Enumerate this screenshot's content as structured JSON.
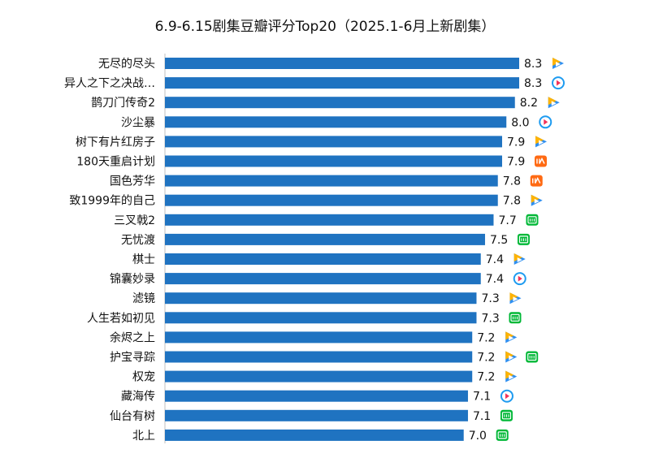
{
  "colors": {
    "bar": "#1f73c1",
    "axis": "#bfbfbf"
  },
  "chart_data": {
    "type": "bar",
    "orientation": "horizontal",
    "title": "6.9-6.15剧集豆瓣评分Top20（2025.1-6月上新剧集）",
    "xlabel": "",
    "ylabel": "",
    "xlim": [
      0,
      8.3
    ],
    "grid": false,
    "categories": [
      "无尽的尽头",
      "异人之下之决战…",
      "鹊刀门传奇2",
      "沙尘暴",
      "树下有片红房子",
      "180天重启计划",
      "国色芳华",
      "致1999年的自己",
      "三叉戟2",
      "无忧渡",
      "棋士",
      "锦囊妙录",
      "滤镜",
      "人生若如初见",
      "余烬之上",
      "护宝寻踪",
      "权宠",
      "藏海传",
      "仙台有树",
      "北上"
    ],
    "values": [
      8.3,
      8.3,
      8.2,
      8.0,
      7.9,
      7.9,
      7.8,
      7.8,
      7.7,
      7.5,
      7.4,
      7.4,
      7.3,
      7.3,
      7.2,
      7.2,
      7.2,
      7.1,
      7.1,
      7.0
    ],
    "value_labels": [
      "8.3",
      "8.3",
      "8.2",
      "8.0",
      "7.9",
      "7.9",
      "7.8",
      "7.8",
      "7.7",
      "7.5",
      "7.4",
      "7.4",
      "7.3",
      "7.3",
      "7.2",
      "7.2",
      "7.2",
      "7.1",
      "7.1",
      "7.0"
    ],
    "platform_icons": [
      [
        "tencent-video-icon"
      ],
      [
        "youku-icon"
      ],
      [
        "tencent-video-icon"
      ],
      [
        "youku-icon"
      ],
      [
        "tencent-video-icon"
      ],
      [
        "mango-tv-icon"
      ],
      [
        "mango-tv-icon"
      ],
      [
        "tencent-video-icon"
      ],
      [
        "iqiyi-icon"
      ],
      [
        "iqiyi-icon"
      ],
      [
        "tencent-video-icon"
      ],
      [
        "youku-icon"
      ],
      [
        "tencent-video-icon"
      ],
      [
        "iqiyi-icon"
      ],
      [
        "tencent-video-icon"
      ],
      [
        "tencent-video-icon",
        "iqiyi-icon"
      ],
      [
        "tencent-video-icon"
      ],
      [
        "youku-icon"
      ],
      [
        "iqiyi-icon"
      ],
      [
        "iqiyi-icon"
      ]
    ]
  }
}
